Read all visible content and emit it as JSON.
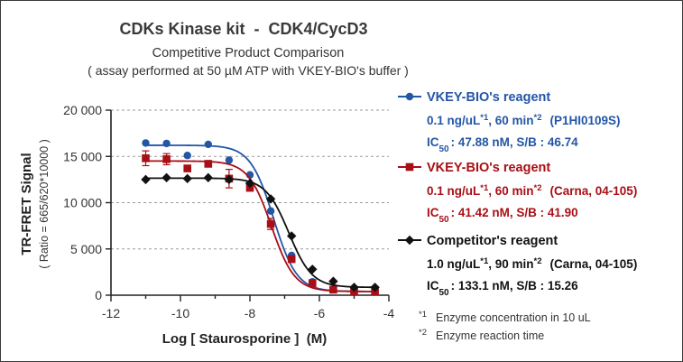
{
  "chart_data": {
    "type": "scatter",
    "title": "CDKs Kinase kit  -  CDK4/CycD3",
    "subtitle": "Competitive Product Comparison",
    "subtitle2": "( assay performed at 50 µM ATP with VKEY-BIO's buffer )",
    "ylabel": "TR-FRET Signal",
    "ylabel2": "( Ratio = 665/620*10000 )",
    "xlabel": "Log [ Staurosporine ]  (M)",
    "xlim": [
      -12,
      -4
    ],
    "ylim": [
      0,
      20000
    ],
    "xticks": [
      -12,
      -10,
      -8,
      -6,
      -4
    ],
    "xtick_labels": [
      "-12",
      "-10",
      "-8",
      "-6",
      "-4"
    ],
    "yticks": [
      0,
      5000,
      10000,
      15000,
      20000
    ],
    "ytick_labels": [
      "0",
      "5 000",
      "10 000",
      "15 000",
      "20 000"
    ],
    "grid": "horizontal dashed",
    "legend_position": "right",
    "series": [
      {
        "name": "VKEY-BIO's reagent",
        "detail_prefix": "0.1 ng/uL",
        "detail_mid": ", 60 min",
        "detail_ref": "(P1HI0109S)",
        "ic50_text": ": 47.88 nM,  S/B : 46.74",
        "color": "#2456a6",
        "marker": "circle",
        "x": [
          -11,
          -10.4,
          -9.8,
          -9.2,
          -8.6,
          -8,
          -7.4,
          -6.8,
          -6.2,
          -5.6,
          -5,
          -4.4
        ],
        "y": [
          16450,
          16400,
          15100,
          16300,
          14600,
          13000,
          9100,
          4300,
          1450,
          650,
          400,
          400
        ],
        "fit": {
          "top": 16200,
          "bottom": 400,
          "logIC50": -7.32,
          "hill": 1.3
        }
      },
      {
        "name": "VKEY-BIO's reagent",
        "detail_prefix": "0.1 ng/uL",
        "detail_mid": ", 60 min",
        "detail_ref": "(Carna, 04-105)",
        "ic50_text": ": 41.42 nM,  S/B : 41.90",
        "color": "#a80f16",
        "marker": "square",
        "x": [
          -11,
          -10.4,
          -9.8,
          -9.2,
          -8.6,
          -8,
          -7.4,
          -6.8,
          -6.2,
          -5.6,
          -5,
          -4.4
        ],
        "y": [
          14800,
          14700,
          13700,
          14200,
          12600,
          11600,
          7700,
          3900,
          1300,
          600,
          400,
          400
        ],
        "err": [
          800,
          600,
          0,
          0,
          1000,
          0,
          600,
          0,
          0,
          0,
          0,
          0
        ],
        "fit": {
          "top": 14500,
          "bottom": 400,
          "logIC50": -7.38,
          "hill": 1.3
        }
      },
      {
        "name": "Competitor's reagent",
        "detail_prefix": "1.0 ng/uL",
        "detail_mid": ", 90 min",
        "detail_ref": "(Carna, 04-105)",
        "ic50_text": ": 133.1 nM,  S/B : 15.26",
        "color": "#111111",
        "marker": "diamond",
        "x": [
          -11,
          -10.4,
          -9.8,
          -9.2,
          -8.6,
          -8,
          -7.4,
          -6.8,
          -6.2,
          -5.6,
          -5,
          -4.4
        ],
        "y": [
          12500,
          12700,
          12600,
          12700,
          12500,
          12100,
          10400,
          6400,
          2800,
          1500,
          850,
          850
        ],
        "fit": {
          "top": 12650,
          "bottom": 850,
          "logIC50": -6.88,
          "hill": 1.3
        }
      }
    ],
    "footnotes": [
      {
        "mark": "*1",
        "text": "Enzyme concentration in 10 uL"
      },
      {
        "mark": "*2",
        "text": "Enzyme reaction time"
      }
    ],
    "labels": {
      "sup1": "*1",
      "sup2": "*2",
      "ic": "IC",
      "ic_sub": "50"
    }
  }
}
